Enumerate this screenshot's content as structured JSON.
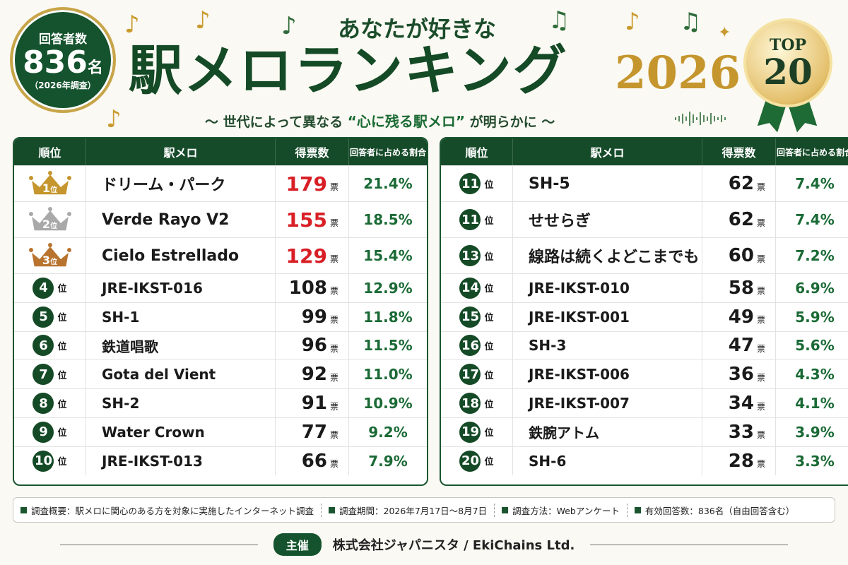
{
  "header": {
    "respondents_label": "回答者数",
    "respondents_count": "836",
    "respondents_unit": "名",
    "survey_year_note": "（2026年調査）",
    "kicker": "あなたが好きな",
    "title": "駅メロランキング",
    "year": "2026",
    "subtitle_pre": "〜 世代によって異なる",
    "subtitle_highlight": "“心に残る駅メロ”",
    "subtitle_post": "が明らかに 〜",
    "top_label": "TOP",
    "top_count": "20"
  },
  "table": {
    "col_rank": "順位",
    "col_name": "駅メロ",
    "col_votes": "得票数",
    "col_pct": "回答者に占める割合",
    "rank_suffix": "位",
    "vote_unit": "票"
  },
  "left_rows": [
    {
      "rank": "1",
      "name": "ドリーム・パーク",
      "votes": "179",
      "pct": "21.4%",
      "medal": "gold"
    },
    {
      "rank": "2",
      "name": "Verde Rayo V2",
      "votes": "155",
      "pct": "18.5%",
      "medal": "silver"
    },
    {
      "rank": "3",
      "name": "Cielo Estrellado",
      "votes": "129",
      "pct": "15.4%",
      "medal": "bronze"
    },
    {
      "rank": "4",
      "name": "JRE-IKST-016",
      "votes": "108",
      "pct": "12.9%"
    },
    {
      "rank": "5",
      "name": "SH-1",
      "votes": "99",
      "pct": "11.8%"
    },
    {
      "rank": "6",
      "name": "鉄道唱歌",
      "votes": "96",
      "pct": "11.5%"
    },
    {
      "rank": "7",
      "name": "Gota del Vient",
      "votes": "92",
      "pct": "11.0%"
    },
    {
      "rank": "8",
      "name": "SH-2",
      "votes": "91",
      "pct": "10.9%"
    },
    {
      "rank": "9",
      "name": "Water Crown",
      "votes": "77",
      "pct": "9.2%"
    },
    {
      "rank": "10",
      "name": "JRE-IKST-013",
      "votes": "66",
      "pct": "7.9%"
    }
  ],
  "right_rows": [
    {
      "rank": "11",
      "name": "SH-5",
      "votes": "62",
      "pct": "7.4%"
    },
    {
      "rank": "11",
      "name": "せせらぎ",
      "votes": "62",
      "pct": "7.4%"
    },
    {
      "rank": "13",
      "name": "線路は続くよどこまでも",
      "votes": "60",
      "pct": "7.2%"
    },
    {
      "rank": "14",
      "name": "JRE-IKST-010",
      "votes": "58",
      "pct": "6.9%"
    },
    {
      "rank": "15",
      "name": "JRE-IKST-001",
      "votes": "49",
      "pct": "5.9%"
    },
    {
      "rank": "16",
      "name": "SH-3",
      "votes": "47",
      "pct": "5.6%"
    },
    {
      "rank": "17",
      "name": "JRE-IKST-006",
      "votes": "36",
      "pct": "4.3%"
    },
    {
      "rank": "18",
      "name": "JRE-IKST-007",
      "votes": "34",
      "pct": "4.1%"
    },
    {
      "rank": "19",
      "name": "鉄腕アトム",
      "votes": "33",
      "pct": "3.9%"
    },
    {
      "rank": "20",
      "name": "SH-6",
      "votes": "28",
      "pct": "3.3%"
    }
  ],
  "footer": {
    "overview": "調査概要：駅メロに関心のある方を対象に実施したインターネット調査",
    "period": "調査期間：2026年7月17日〜8月7日",
    "method": "調査方法：Webアンケート",
    "valid": "有効回答数：836名（自由回答含む）",
    "sponsor_label": "主催",
    "sponsor_org": "株式会社ジャパニスタ  /  EkiChains Ltd."
  },
  "colors": {
    "primary_green": "#144a26",
    "gold": "#c5962e",
    "silver": "#a9a9a9",
    "bronze": "#b8742f",
    "top3_votes_red": "#d81f26",
    "pct_green": "#1a6a35"
  },
  "icons": [
    "music-note-icon",
    "crown-icon",
    "sparkle-icon",
    "sound-wave-icon"
  ]
}
